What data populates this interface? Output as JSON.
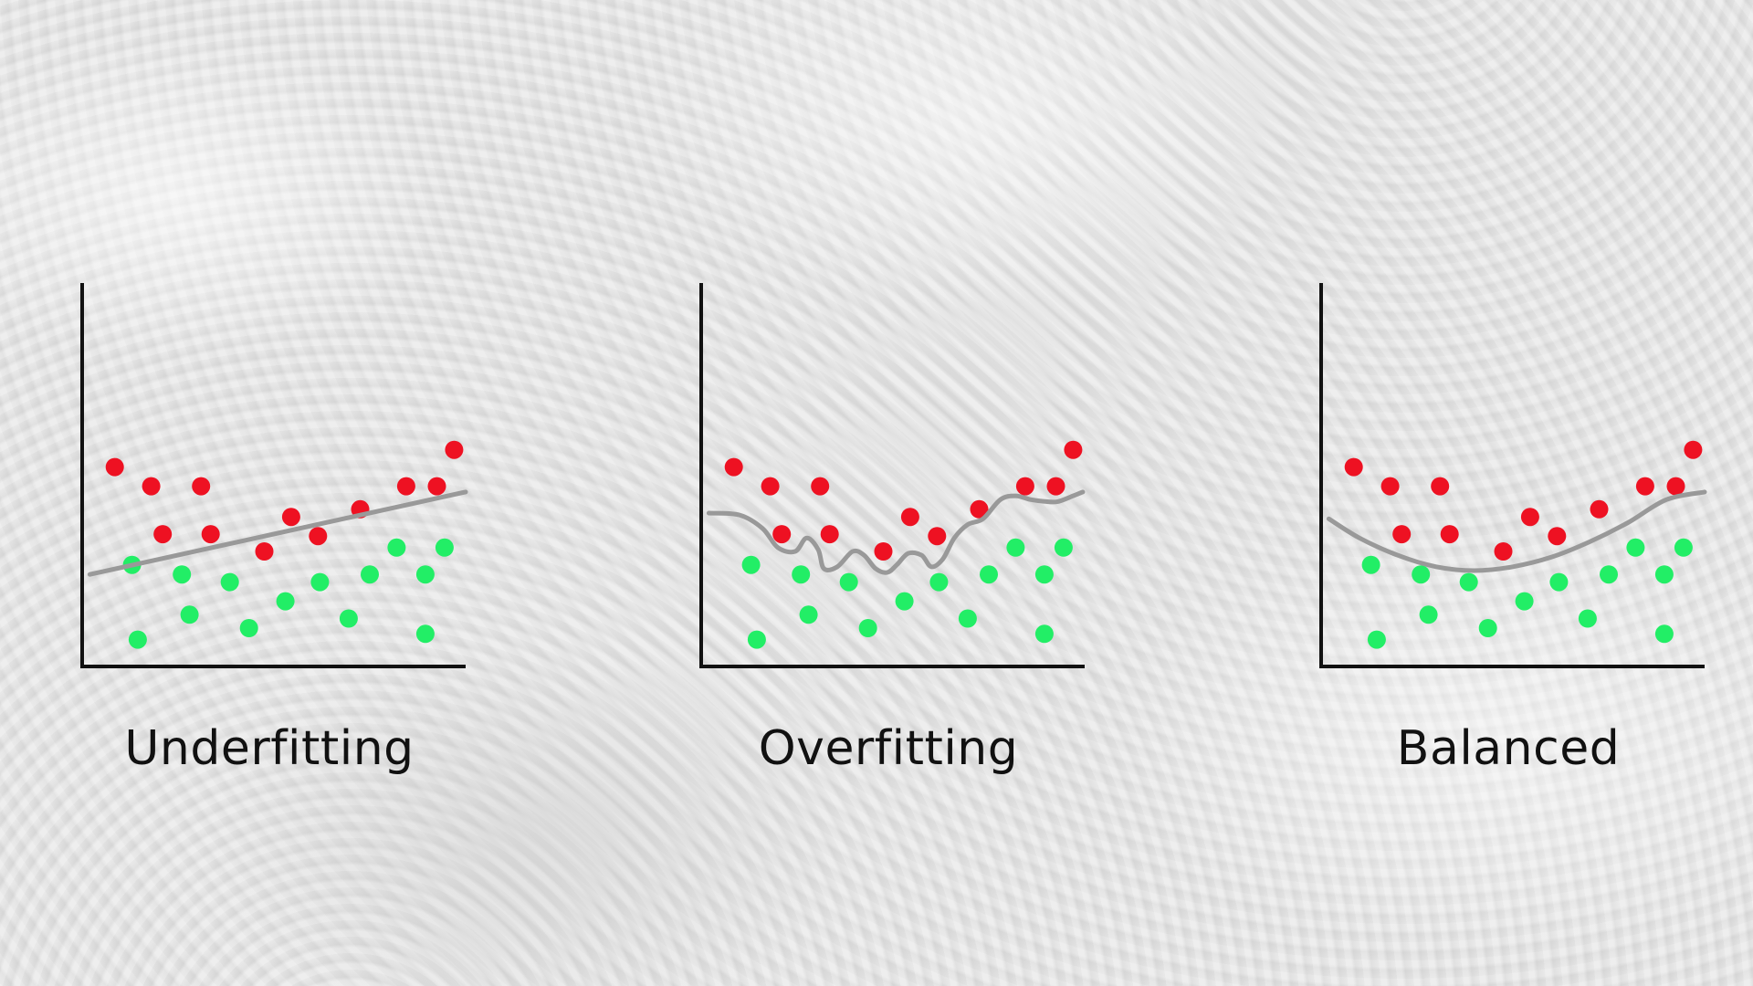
{
  "colors": {
    "axis": "#111111",
    "red_point": "#ee1122",
    "green_point": "#22ee66",
    "fit_line": "#999999"
  },
  "chart_data": [
    {
      "type": "scatter",
      "title": "Underfitting",
      "xlim": [
        0,
        10
      ],
      "ylim": [
        0,
        10
      ],
      "grid": false,
      "series": [
        {
          "class": "red",
          "points": [
            [
              0.85,
              5.2
            ],
            [
              1.8,
              4.7
            ],
            [
              3.1,
              4.7
            ],
            [
              2.1,
              3.45
            ],
            [
              3.35,
              3.45
            ],
            [
              4.75,
              3.0
            ],
            [
              5.45,
              3.9
            ],
            [
              6.15,
              3.4
            ],
            [
              7.25,
              4.1
            ],
            [
              8.45,
              4.7
            ],
            [
              9.25,
              4.7
            ],
            [
              9.7,
              5.65
            ]
          ]
        },
        {
          "class": "green",
          "points": [
            [
              1.3,
              2.65
            ],
            [
              2.6,
              2.4
            ],
            [
              3.85,
              2.2
            ],
            [
              1.45,
              0.7
            ],
            [
              2.8,
              1.35
            ],
            [
              4.35,
              1.0
            ],
            [
              5.3,
              1.7
            ],
            [
              6.2,
              2.2
            ],
            [
              6.95,
              1.25
            ],
            [
              7.5,
              2.4
            ],
            [
              8.2,
              3.1
            ],
            [
              8.95,
              2.4
            ],
            [
              9.45,
              3.1
            ],
            [
              8.95,
              0.85
            ]
          ]
        }
      ],
      "fit_line": {
        "model": "linear",
        "points": [
          [
            0.2,
            2.4
          ],
          [
            10,
            4.55
          ]
        ]
      }
    },
    {
      "type": "scatter",
      "title": "Overfitting",
      "xlim": [
        0,
        10
      ],
      "ylim": [
        0,
        10
      ],
      "grid": false,
      "series": [
        {
          "class": "red",
          "points": [
            [
              0.85,
              5.2
            ],
            [
              1.8,
              4.7
            ],
            [
              3.1,
              4.7
            ],
            [
              2.1,
              3.45
            ],
            [
              3.35,
              3.45
            ],
            [
              4.75,
              3.0
            ],
            [
              5.45,
              3.9
            ],
            [
              6.15,
              3.4
            ],
            [
              7.25,
              4.1
            ],
            [
              8.45,
              4.7
            ],
            [
              9.25,
              4.7
            ],
            [
              9.7,
              5.65
            ]
          ]
        },
        {
          "class": "green",
          "points": [
            [
              1.3,
              2.65
            ],
            [
              2.6,
              2.4
            ],
            [
              3.85,
              2.2
            ],
            [
              1.45,
              0.7
            ],
            [
              2.8,
              1.35
            ],
            [
              4.35,
              1.0
            ],
            [
              5.3,
              1.7
            ],
            [
              6.2,
              2.2
            ],
            [
              6.95,
              1.25
            ],
            [
              7.5,
              2.4
            ],
            [
              8.2,
              3.1
            ],
            [
              8.95,
              2.4
            ],
            [
              9.45,
              3.1
            ],
            [
              8.95,
              0.85
            ]
          ]
        }
      ],
      "fit_line": {
        "model": "overfit",
        "points": [
          [
            0.2,
            4.0
          ],
          [
            1.0,
            3.95
          ],
          [
            1.6,
            3.6
          ],
          [
            2.0,
            3.1
          ],
          [
            2.45,
            3.0
          ],
          [
            2.75,
            3.35
          ],
          [
            3.05,
            3.05
          ],
          [
            3.2,
            2.55
          ],
          [
            3.55,
            2.6
          ],
          [
            3.95,
            3.0
          ],
          [
            4.25,
            2.9
          ],
          [
            4.55,
            2.55
          ],
          [
            4.85,
            2.45
          ],
          [
            5.1,
            2.65
          ],
          [
            5.4,
            2.95
          ],
          [
            5.75,
            2.9
          ],
          [
            6.0,
            2.6
          ],
          [
            6.3,
            2.8
          ],
          [
            6.6,
            3.35
          ],
          [
            6.95,
            3.7
          ],
          [
            7.35,
            3.85
          ],
          [
            7.8,
            4.35
          ],
          [
            8.2,
            4.45
          ],
          [
            8.6,
            4.35
          ],
          [
            9.0,
            4.3
          ],
          [
            9.3,
            4.3
          ],
          [
            9.7,
            4.45
          ],
          [
            9.95,
            4.55
          ]
        ]
      }
    },
    {
      "type": "scatter",
      "title": "Balanced",
      "xlim": [
        0,
        10
      ],
      "ylim": [
        0,
        10
      ],
      "grid": false,
      "series": [
        {
          "class": "red",
          "points": [
            [
              0.85,
              5.2
            ],
            [
              1.8,
              4.7
            ],
            [
              3.1,
              4.7
            ],
            [
              2.1,
              3.45
            ],
            [
              3.35,
              3.45
            ],
            [
              4.75,
              3.0
            ],
            [
              5.45,
              3.9
            ],
            [
              6.15,
              3.4
            ],
            [
              7.25,
              4.1
            ],
            [
              8.45,
              4.7
            ],
            [
              9.25,
              4.7
            ],
            [
              9.7,
              5.65
            ]
          ]
        },
        {
          "class": "green",
          "points": [
            [
              1.3,
              2.65
            ],
            [
              2.6,
              2.4
            ],
            [
              3.85,
              2.2
            ],
            [
              1.45,
              0.7
            ],
            [
              2.8,
              1.35
            ],
            [
              4.35,
              1.0
            ],
            [
              5.3,
              1.7
            ],
            [
              6.2,
              2.2
            ],
            [
              6.95,
              1.25
            ],
            [
              7.5,
              2.4
            ],
            [
              8.2,
              3.1
            ],
            [
              8.95,
              2.4
            ],
            [
              9.45,
              3.1
            ],
            [
              8.95,
              0.85
            ]
          ]
        }
      ],
      "fit_line": {
        "model": "quadratic",
        "points": [
          [
            0.2,
            3.85
          ],
          [
            1.0,
            3.35
          ],
          [
            2.0,
            2.9
          ],
          [
            3.0,
            2.6
          ],
          [
            4.0,
            2.5
          ],
          [
            5.0,
            2.6
          ],
          [
            6.0,
            2.85
          ],
          [
            7.0,
            3.25
          ],
          [
            8.0,
            3.75
          ],
          [
            9.0,
            4.35
          ],
          [
            10.0,
            4.55
          ]
        ]
      }
    }
  ]
}
